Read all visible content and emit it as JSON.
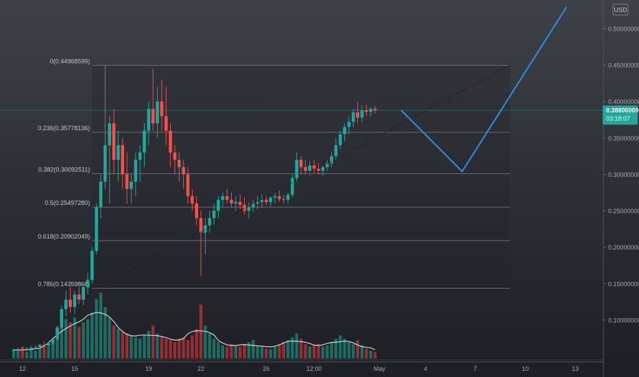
{
  "chart_data": {
    "type": "candlestick",
    "currency": "USD",
    "y_axis": {
      "min": 0.05,
      "max": 0.53,
      "tick_labels": [
        "0.50000000",
        "0.45000000",
        "0.40000000",
        "0.35000000",
        "0.30000000",
        "0.25000000",
        "0.20000000",
        "0.15000000",
        "0.10000000"
      ],
      "tick_values": [
        0.5,
        0.45,
        0.4,
        0.35,
        0.3,
        0.25,
        0.2,
        0.15,
        0.1
      ]
    },
    "x_axis": {
      "tick_labels": [
        "12",
        "15",
        "19",
        "22",
        "26",
        "12:00",
        "May",
        "4",
        "7",
        "10",
        "13"
      ],
      "tick_index": [
        2,
        14,
        31,
        43,
        58,
        69,
        84,
        94.6,
        106,
        117.5,
        129
      ]
    },
    "last_price": {
      "value": 0.388,
      "label": "0.38800000",
      "countdown": "03:18:07",
      "color": "#26a69a"
    },
    "fibonacci": {
      "levels": [
        {
          "label": "0(0.44968599)",
          "value": 0.44968599
        },
        {
          "label": "0.236(0.35778136)",
          "value": 0.35778136
        },
        {
          "label": "0.382(0.30092511)",
          "value": 0.30092511
        },
        {
          "label": "0.5(0.25497280)",
          "value": 0.2549728
        },
        {
          "label": "0.618(0.20902049)",
          "value": 0.20902049
        },
        {
          "label": "0.786(0.14359866)",
          "value": 0.14359866
        }
      ],
      "start_index": 18,
      "end_index": 114
    },
    "candles_ohlc": [
      [
        0.058,
        0.061,
        0.056,
        0.059
      ],
      [
        0.059,
        0.062,
        0.057,
        0.06
      ],
      [
        0.06,
        0.063,
        0.058,
        0.059
      ],
      [
        0.059,
        0.062,
        0.057,
        0.061
      ],
      [
        0.061,
        0.064,
        0.059,
        0.062
      ],
      [
        0.062,
        0.065,
        0.06,
        0.063
      ],
      [
        0.063,
        0.067,
        0.061,
        0.066
      ],
      [
        0.066,
        0.07,
        0.064,
        0.065
      ],
      [
        0.065,
        0.069,
        0.063,
        0.068
      ],
      [
        0.068,
        0.075,
        0.066,
        0.074
      ],
      [
        0.074,
        0.092,
        0.072,
        0.09
      ],
      [
        0.09,
        0.12,
        0.088,
        0.115
      ],
      [
        0.115,
        0.14,
        0.105,
        0.128
      ],
      [
        0.128,
        0.145,
        0.11,
        0.118
      ],
      [
        0.118,
        0.14,
        0.108,
        0.135
      ],
      [
        0.135,
        0.145,
        0.122,
        0.128
      ],
      [
        0.128,
        0.15,
        0.12,
        0.145
      ],
      [
        0.145,
        0.165,
        0.135,
        0.155
      ],
      [
        0.155,
        0.2,
        0.15,
        0.195
      ],
      [
        0.195,
        0.26,
        0.19,
        0.255
      ],
      [
        0.255,
        0.3,
        0.24,
        0.29
      ],
      [
        0.29,
        0.45,
        0.28,
        0.34
      ],
      [
        0.34,
        0.38,
        0.26,
        0.37
      ],
      [
        0.37,
        0.39,
        0.3,
        0.32
      ],
      [
        0.32,
        0.36,
        0.29,
        0.34
      ],
      [
        0.34,
        0.35,
        0.28,
        0.3
      ],
      [
        0.3,
        0.33,
        0.26,
        0.28
      ],
      [
        0.28,
        0.3,
        0.26,
        0.29
      ],
      [
        0.29,
        0.33,
        0.27,
        0.32
      ],
      [
        0.32,
        0.34,
        0.29,
        0.33
      ],
      [
        0.33,
        0.37,
        0.31,
        0.36
      ],
      [
        0.36,
        0.4,
        0.34,
        0.39
      ],
      [
        0.39,
        0.445,
        0.36,
        0.37
      ],
      [
        0.37,
        0.42,
        0.35,
        0.4
      ],
      [
        0.4,
        0.43,
        0.36,
        0.38
      ],
      [
        0.38,
        0.42,
        0.34,
        0.36
      ],
      [
        0.36,
        0.37,
        0.31,
        0.33
      ],
      [
        0.33,
        0.34,
        0.3,
        0.32
      ],
      [
        0.32,
        0.33,
        0.29,
        0.31
      ],
      [
        0.31,
        0.32,
        0.28,
        0.3
      ],
      [
        0.3,
        0.31,
        0.26,
        0.27
      ],
      [
        0.27,
        0.28,
        0.25,
        0.26
      ],
      [
        0.26,
        0.27,
        0.23,
        0.24
      ],
      [
        0.24,
        0.25,
        0.16,
        0.22
      ],
      [
        0.22,
        0.24,
        0.19,
        0.23
      ],
      [
        0.23,
        0.25,
        0.22,
        0.24
      ],
      [
        0.24,
        0.26,
        0.23,
        0.25
      ],
      [
        0.25,
        0.27,
        0.24,
        0.265
      ],
      [
        0.265,
        0.275,
        0.255,
        0.27
      ],
      [
        0.27,
        0.28,
        0.26,
        0.265
      ],
      [
        0.265,
        0.275,
        0.255,
        0.26
      ],
      [
        0.26,
        0.27,
        0.25,
        0.262
      ],
      [
        0.262,
        0.272,
        0.252,
        0.258
      ],
      [
        0.258,
        0.268,
        0.245,
        0.25
      ],
      [
        0.25,
        0.262,
        0.24,
        0.255
      ],
      [
        0.255,
        0.265,
        0.248,
        0.26
      ],
      [
        0.26,
        0.27,
        0.252,
        0.262
      ],
      [
        0.262,
        0.272,
        0.255,
        0.265
      ],
      [
        0.265,
        0.27,
        0.258,
        0.262
      ],
      [
        0.262,
        0.27,
        0.256,
        0.268
      ],
      [
        0.268,
        0.275,
        0.26,
        0.27
      ],
      [
        0.27,
        0.278,
        0.262,
        0.266
      ],
      [
        0.266,
        0.272,
        0.26,
        0.265
      ],
      [
        0.265,
        0.275,
        0.26,
        0.272
      ],
      [
        0.272,
        0.3,
        0.268,
        0.295
      ],
      [
        0.295,
        0.33,
        0.29,
        0.32
      ],
      [
        0.32,
        0.325,
        0.3,
        0.31
      ],
      [
        0.31,
        0.32,
        0.3,
        0.305
      ],
      [
        0.305,
        0.318,
        0.298,
        0.312
      ],
      [
        0.312,
        0.32,
        0.302,
        0.308
      ],
      [
        0.308,
        0.315,
        0.3,
        0.305
      ],
      [
        0.305,
        0.312,
        0.298,
        0.31
      ],
      [
        0.31,
        0.32,
        0.305,
        0.315
      ],
      [
        0.315,
        0.33,
        0.31,
        0.325
      ],
      [
        0.325,
        0.35,
        0.32,
        0.34
      ],
      [
        0.34,
        0.36,
        0.335,
        0.355
      ],
      [
        0.355,
        0.37,
        0.345,
        0.365
      ],
      [
        0.365,
        0.38,
        0.355,
        0.372
      ],
      [
        0.372,
        0.39,
        0.365,
        0.385
      ],
      [
        0.385,
        0.4,
        0.37,
        0.378
      ],
      [
        0.378,
        0.395,
        0.372,
        0.388
      ],
      [
        0.388,
        0.395,
        0.38,
        0.386
      ],
      [
        0.386,
        0.392,
        0.38,
        0.39
      ],
      [
        0.39,
        0.394,
        0.384,
        0.388
      ]
    ],
    "volume_relative": [
      0.14,
      0.12,
      0.18,
      0.1,
      0.15,
      0.12,
      0.16,
      0.2,
      0.18,
      0.25,
      0.35,
      0.5,
      0.6,
      0.55,
      0.62,
      0.48,
      0.55,
      0.6,
      0.7,
      0.9,
      1.0,
      0.78,
      0.62,
      0.5,
      0.45,
      0.4,
      0.38,
      0.35,
      0.32,
      0.3,
      0.35,
      0.42,
      0.5,
      0.38,
      0.33,
      0.3,
      0.28,
      0.25,
      0.3,
      0.32,
      0.28,
      0.35,
      0.45,
      0.82,
      0.5,
      0.38,
      0.3,
      0.25,
      0.2,
      0.18,
      0.22,
      0.2,
      0.18,
      0.22,
      0.25,
      0.28,
      0.2,
      0.18,
      0.15,
      0.14,
      0.18,
      0.2,
      0.25,
      0.28,
      0.32,
      0.38,
      0.3,
      0.22,
      0.18,
      0.2,
      0.22,
      0.18,
      0.2,
      0.25,
      0.3,
      0.35,
      0.3,
      0.25,
      0.22,
      0.28,
      0.2,
      0.15,
      0.12,
      0.1
    ],
    "projection_path": [
      {
        "index": 89,
        "value": 0.388
      },
      {
        "index": 103,
        "value": 0.304
      },
      {
        "index": 127,
        "value": 0.53
      }
    ],
    "trendline": [
      {
        "index": 18,
        "value": 0.14
      },
      {
        "index": 114,
        "value": 0.45
      }
    ]
  }
}
